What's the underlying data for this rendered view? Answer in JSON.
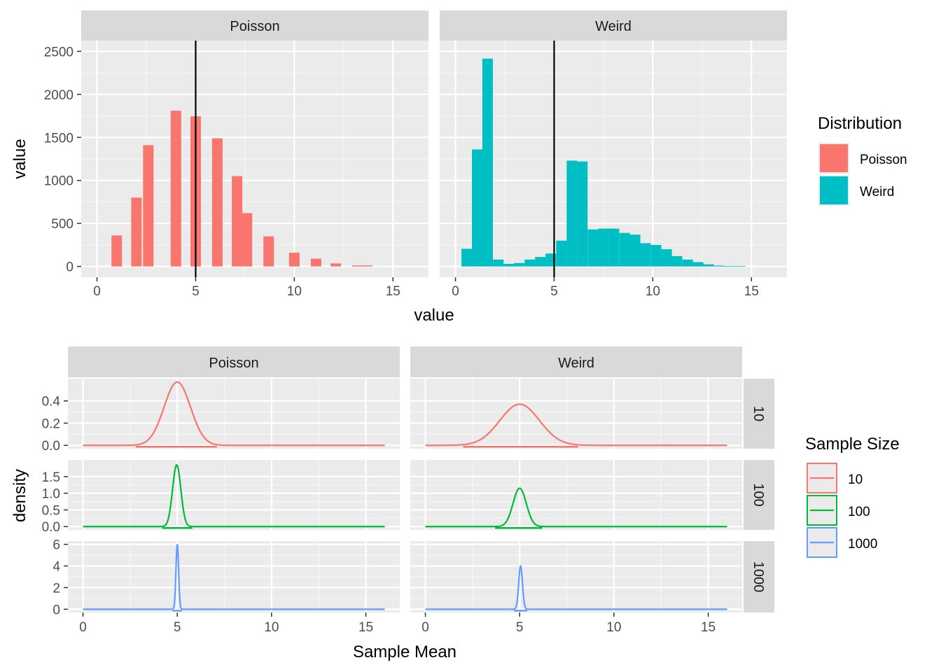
{
  "chart_data": [
    {
      "type": "bar",
      "subtype": "faceted-histogram",
      "facets": [
        "Poisson",
        "Weird"
      ],
      "xlabel": "value",
      "ylabel": "value",
      "xlim": [
        -0.8,
        16.8
      ],
      "ylim": [
        -125,
        2625
      ],
      "x_ticks": [
        0,
        5,
        10,
        15
      ],
      "y_ticks": [
        0,
        500,
        1000,
        1500,
        2000,
        2500
      ],
      "vline": 5,
      "bin_width": 0.533,
      "legend": {
        "title": "Distribution",
        "entries": [
          {
            "label": "Poisson",
            "color": "#F8766D"
          },
          {
            "label": "Weird",
            "color": "#00BFC4"
          }
        ]
      },
      "series": [
        {
          "name": "Poisson",
          "color": "#F8766D",
          "bins": [
            {
              "x": 1,
              "count": 360
            },
            {
              "x": 2,
              "count": 800
            },
            {
              "x": 2.6,
              "count": 1410
            },
            {
              "x": 4,
              "count": 1810
            },
            {
              "x": 5,
              "count": 1745
            },
            {
              "x": 6.1,
              "count": 1490
            },
            {
              "x": 7.1,
              "count": 1050
            },
            {
              "x": 7.6,
              "count": 620
            },
            {
              "x": 8.7,
              "count": 350
            },
            {
              "x": 10,
              "count": 160
            },
            {
              "x": 11.1,
              "count": 90
            },
            {
              "x": 12.1,
              "count": 35
            },
            {
              "x": 13.2,
              "count": 12
            },
            {
              "x": 13.7,
              "count": 12
            }
          ]
        },
        {
          "name": "Weird",
          "color": "#00BFC4",
          "bins": [
            {
              "x": 0.57,
              "count": 205
            },
            {
              "x": 1.1,
              "count": 1360
            },
            {
              "x": 1.63,
              "count": 2415
            },
            {
              "x": 2.17,
              "count": 80
            },
            {
              "x": 2.7,
              "count": 30
            },
            {
              "x": 3.23,
              "count": 40
            },
            {
              "x": 3.77,
              "count": 80
            },
            {
              "x": 4.3,
              "count": 110
            },
            {
              "x": 4.83,
              "count": 150
            },
            {
              "x": 5.37,
              "count": 300
            },
            {
              "x": 5.9,
              "count": 1230
            },
            {
              "x": 6.43,
              "count": 1220
            },
            {
              "x": 6.97,
              "count": 430
            },
            {
              "x": 7.5,
              "count": 440
            },
            {
              "x": 8.03,
              "count": 440
            },
            {
              "x": 8.57,
              "count": 390
            },
            {
              "x": 9.1,
              "count": 370
            },
            {
              "x": 9.63,
              "count": 270
            },
            {
              "x": 10.17,
              "count": 250
            },
            {
              "x": 10.7,
              "count": 200
            },
            {
              "x": 11.23,
              "count": 120
            },
            {
              "x": 11.77,
              "count": 80
            },
            {
              "x": 12.3,
              "count": 50
            },
            {
              "x": 12.83,
              "count": 25
            },
            {
              "x": 13.37,
              "count": 10
            },
            {
              "x": 13.9,
              "count": 5
            },
            {
              "x": 14.43,
              "count": 3
            }
          ]
        }
      ]
    },
    {
      "type": "line",
      "subtype": "faceted-density",
      "facets_col": [
        "Poisson",
        "Weird"
      ],
      "facets_row": [
        "10",
        "100",
        "1000"
      ],
      "xlabel": "Sample Mean",
      "ylabel": "density",
      "xlim": [
        -0.8,
        16.8
      ],
      "x_ticks": [
        0,
        5,
        10,
        15
      ],
      "rows": [
        {
          "label": "10",
          "ylim": [
            -0.03,
            0.6
          ],
          "y_ticks": [
            0.0,
            0.2,
            0.4
          ],
          "y_tick_labels": [
            "0.0",
            "0.2",
            "0.4"
          ]
        },
        {
          "label": "100",
          "ylim": [
            -0.1,
            2.0
          ],
          "y_ticks": [
            0.0,
            0.5,
            1.0,
            1.5
          ],
          "y_tick_labels": [
            "0.0",
            "0.5",
            "1.0",
            "1.5"
          ]
        },
        {
          "label": "1000",
          "ylim": [
            -0.3,
            6.3
          ],
          "y_ticks": [
            0,
            2,
            4,
            6
          ],
          "y_tick_labels": [
            "0",
            "2",
            "4",
            "6"
          ]
        }
      ],
      "legend": {
        "title": "Sample Size",
        "entries": [
          {
            "label": "10",
            "color": "#F8766D"
          },
          {
            "label": "100",
            "color": "#00BA38"
          },
          {
            "label": "1000",
            "color": "#619CFF"
          }
        ]
      },
      "series": [
        {
          "facet": "Poisson",
          "sample_size": "10",
          "color": "#F8766D",
          "curve": "normal",
          "mean": 5.0,
          "peak": 0.57,
          "sd": 0.7,
          "support": [
            0,
            16
          ],
          "rug": [
            2.8,
            7.1
          ]
        },
        {
          "facet": "Weird",
          "sample_size": "10",
          "color": "#F8766D",
          "curve": "normal",
          "mean": 5.0,
          "peak": 0.37,
          "sd": 1.05,
          "support": [
            0,
            16
          ],
          "rug": [
            2.0,
            8.1
          ]
        },
        {
          "facet": "Poisson",
          "sample_size": "100",
          "color": "#00BA38",
          "curve": "normal",
          "mean": 4.97,
          "peak": 1.85,
          "sd": 0.22,
          "support": [
            0,
            16
          ],
          "rug": [
            4.2,
            5.8
          ]
        },
        {
          "facet": "Weird",
          "sample_size": "100",
          "color": "#00BA38",
          "curve": "normal",
          "mean": 5.0,
          "peak": 1.15,
          "sd": 0.35,
          "support": [
            0,
            16
          ],
          "rug": [
            3.7,
            6.2
          ]
        },
        {
          "facet": "Poisson",
          "sample_size": "1000",
          "color": "#619CFF",
          "curve": "normal",
          "mean": 5.0,
          "peak": 6.0,
          "sd": 0.07,
          "support": [
            0,
            16
          ],
          "rug": [
            4.75,
            5.25
          ]
        },
        {
          "facet": "Weird",
          "sample_size": "1000",
          "color": "#619CFF",
          "curve": "normal",
          "mean": 5.05,
          "peak": 4.0,
          "sd": 0.1,
          "support": [
            0,
            16
          ],
          "rug": [
            4.7,
            5.4
          ]
        }
      ]
    }
  ]
}
